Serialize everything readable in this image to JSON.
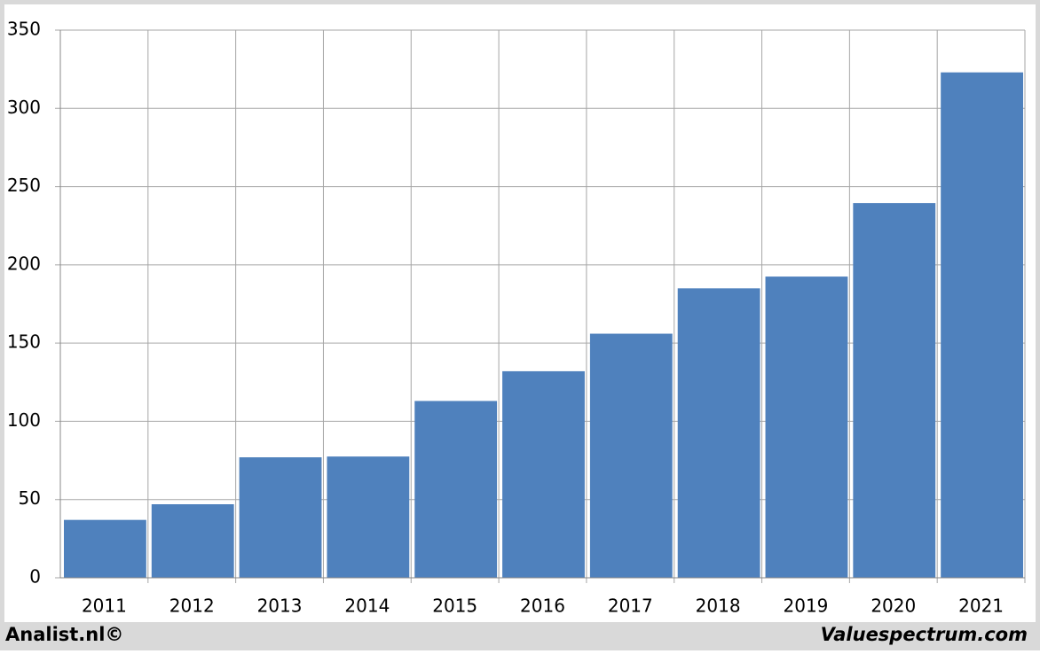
{
  "chart_data": {
    "type": "bar",
    "categories": [
      "2011",
      "2012",
      "2013",
      "2014",
      "2015",
      "2016",
      "2017",
      "2018",
      "2019",
      "2020",
      "2021"
    ],
    "values": [
      37,
      47,
      77,
      77.5,
      113,
      132,
      156,
      185,
      192.5,
      239.5,
      323
    ],
    "color": "#4f81bd",
    "ylim": [
      0,
      350
    ],
    "yticks": [
      0,
      50,
      100,
      150,
      200,
      250,
      300,
      350
    ],
    "grid": true
  },
  "footer": {
    "left": "Analist.nl©",
    "right": "Valuespectrum.com"
  }
}
